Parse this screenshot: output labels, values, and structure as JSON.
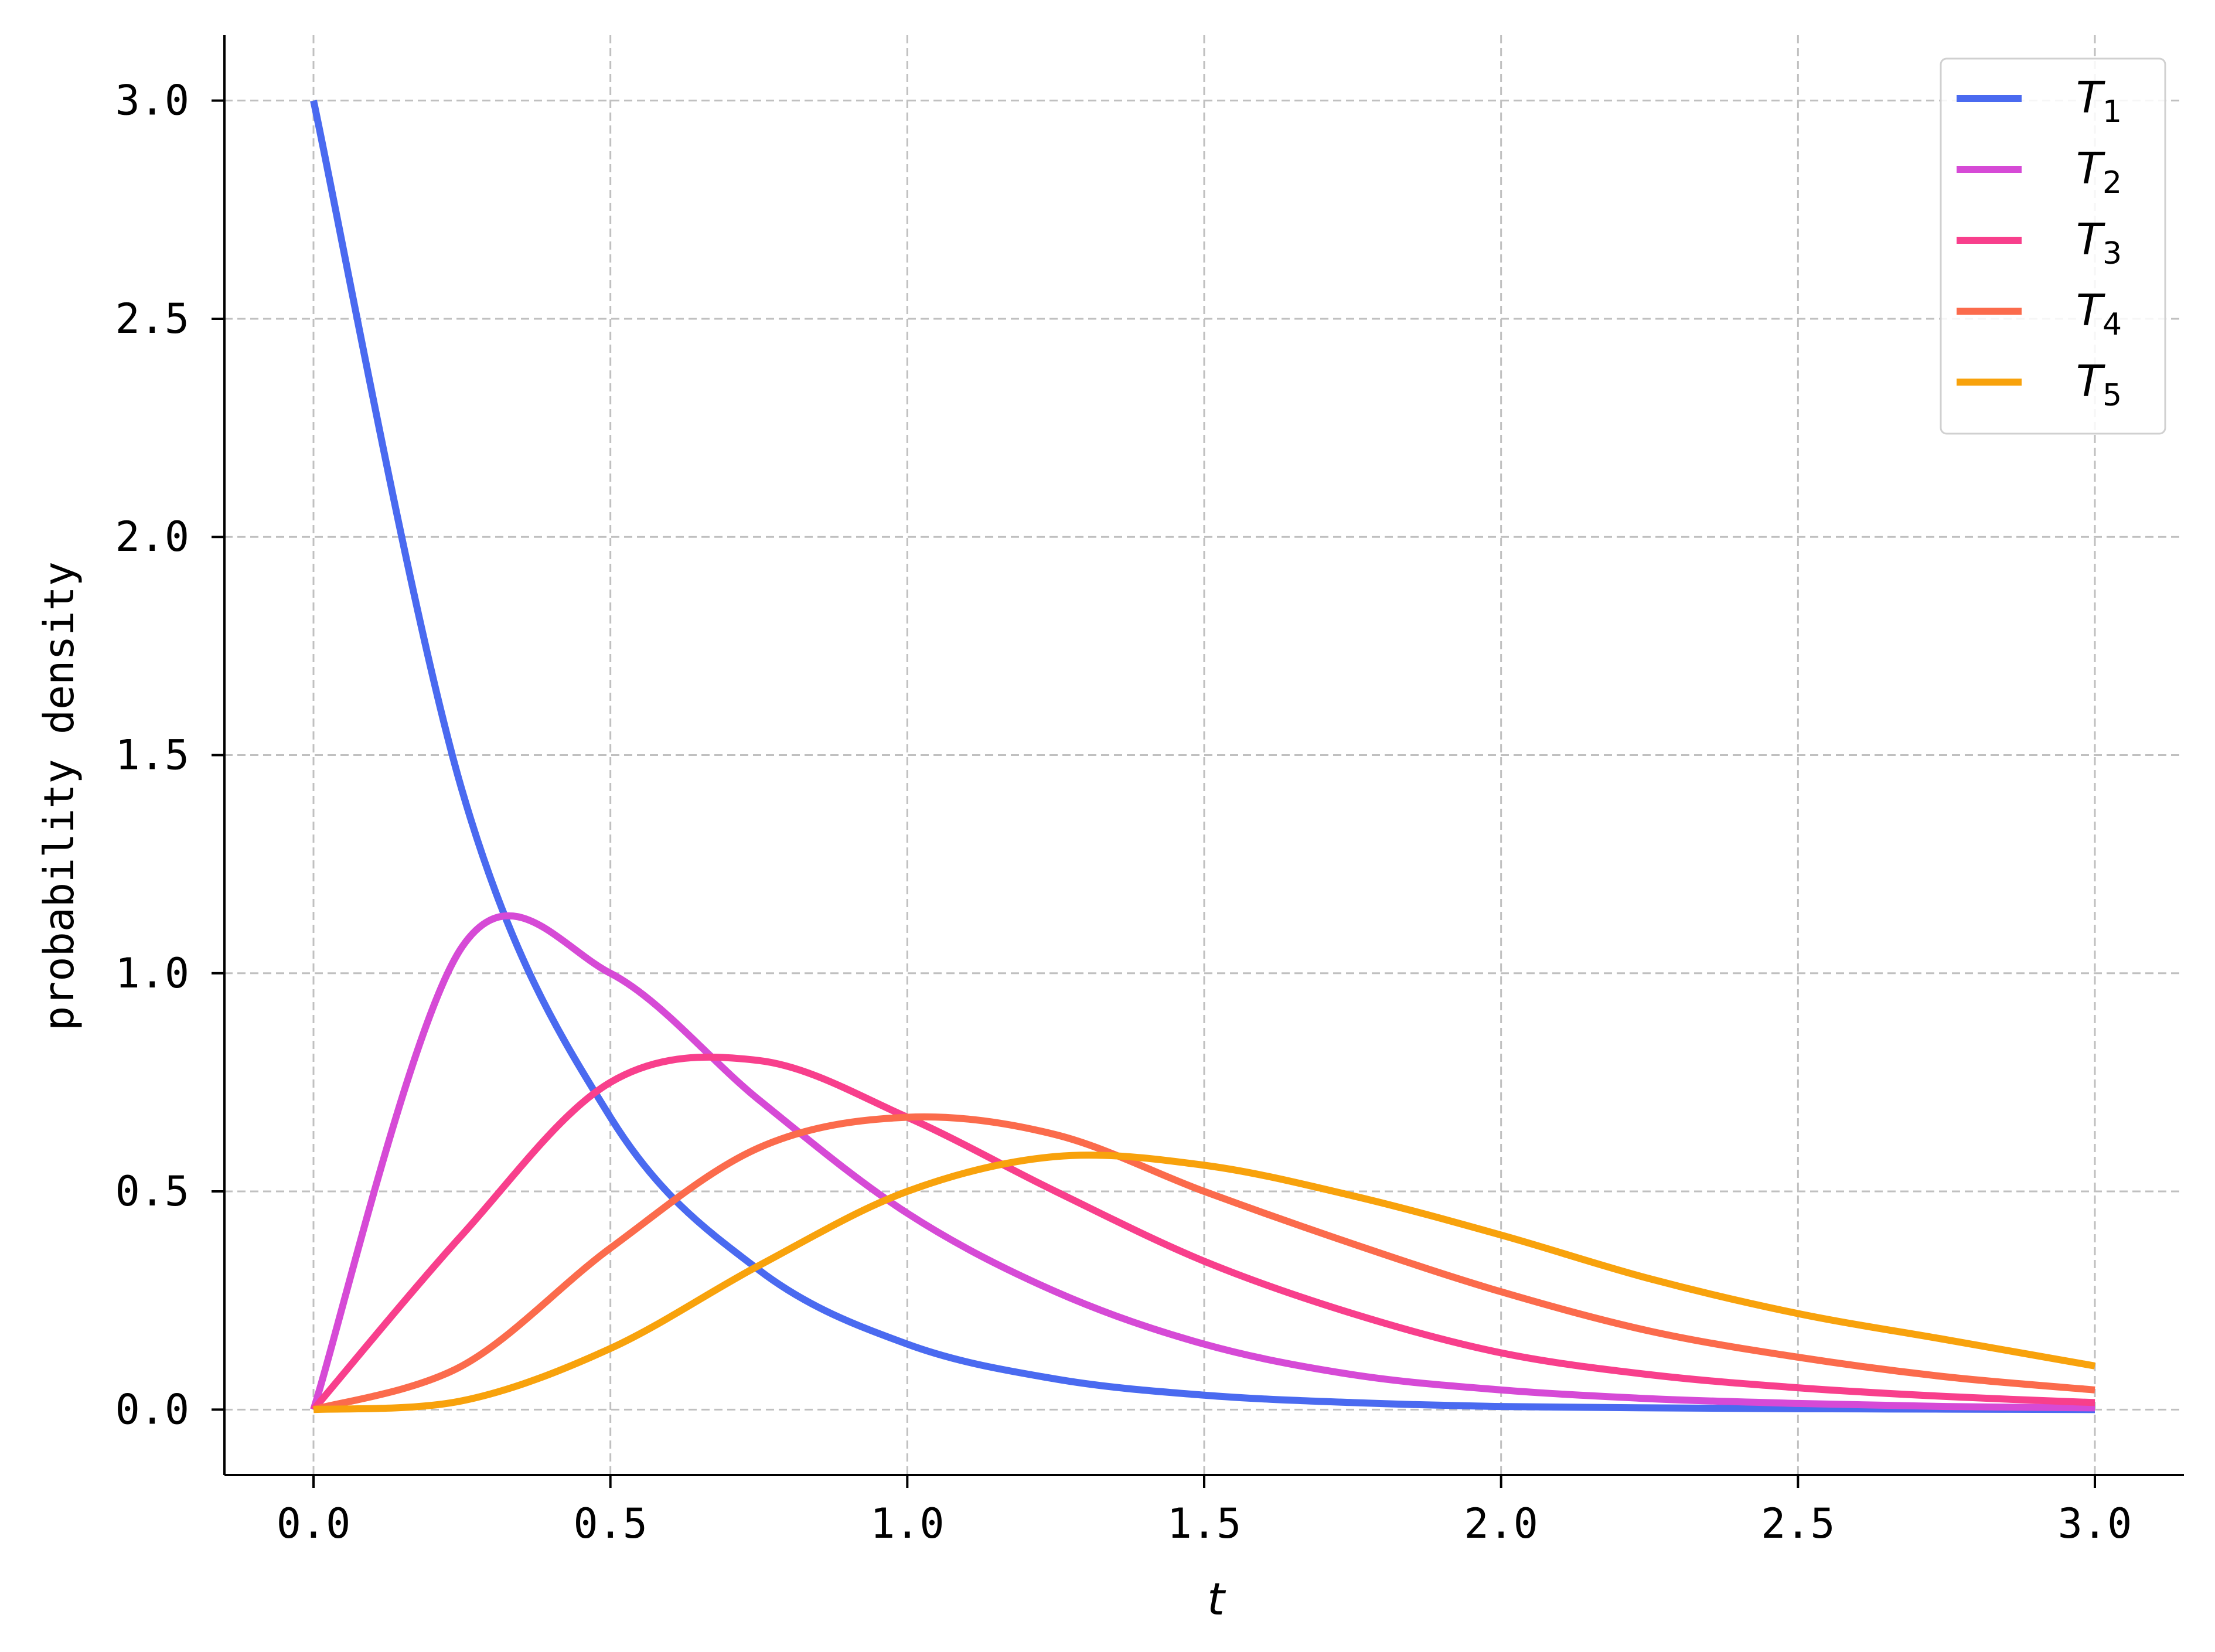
{
  "chart_data": {
    "type": "line",
    "title": "",
    "xlabel": "t",
    "ylabel": "probability density",
    "xlim": [
      -0.15,
      3.15
    ],
    "ylim": [
      -0.15,
      3.15
    ],
    "x_ticks": [
      "0.0",
      "0.5",
      "1.0",
      "1.5",
      "2.0",
      "2.5",
      "3.0"
    ],
    "y_ticks": [
      "0.0",
      "0.5",
      "1.0",
      "1.5",
      "2.0",
      "2.5",
      "3.0"
    ],
    "grid": true,
    "grid_style": "dashed",
    "legend_position": "top-right",
    "x": [
      0.0,
      0.25,
      0.5,
      0.75,
      1.0,
      1.25,
      1.5,
      1.75,
      2.0,
      2.25,
      2.5,
      2.75,
      3.0
    ],
    "series": [
      {
        "name": "T",
        "sub": "1",
        "color": "#4a6af0",
        "values": [
          3.0,
          1.42,
          0.67,
          0.32,
          0.15,
          0.07,
          0.033,
          0.016,
          0.007,
          0.004,
          0.002,
          0.001,
          0.0
        ]
      },
      {
        "name": "T",
        "sub": "2",
        "color": "#d64ad6",
        "values": [
          0.0,
          1.06,
          1.0,
          0.71,
          0.45,
          0.27,
          0.15,
          0.08,
          0.045,
          0.025,
          0.014,
          0.007,
          0.004
        ]
      },
      {
        "name": "T",
        "sub": "3",
        "color": "#f83f8c",
        "values": [
          0.0,
          0.4,
          0.75,
          0.8,
          0.67,
          0.5,
          0.34,
          0.22,
          0.13,
          0.08,
          0.05,
          0.03,
          0.016
        ]
      },
      {
        "name": "T",
        "sub": "4",
        "color": "#fb6b4c",
        "values": [
          0.0,
          0.1,
          0.37,
          0.6,
          0.67,
          0.63,
          0.5,
          0.38,
          0.27,
          0.18,
          0.12,
          0.075,
          0.045
        ]
      },
      {
        "name": "T",
        "sub": "5",
        "color": "#f8a20c",
        "values": [
          0.0,
          0.02,
          0.14,
          0.33,
          0.5,
          0.58,
          0.56,
          0.49,
          0.4,
          0.3,
          0.22,
          0.16,
          0.1
        ]
      }
    ]
  }
}
